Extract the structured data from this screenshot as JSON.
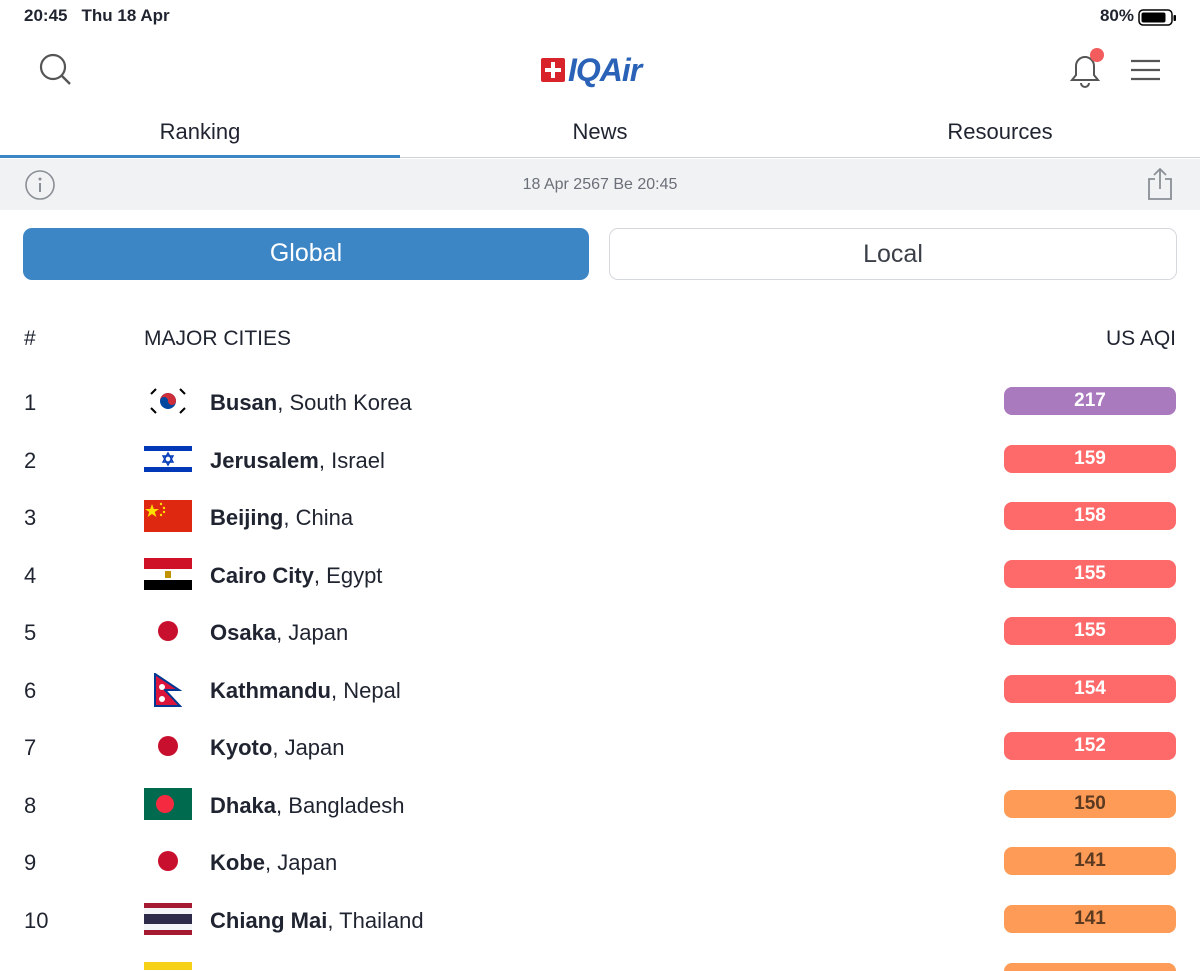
{
  "status_bar": {
    "time": "20:45",
    "date": "Thu 18 Apr",
    "battery": "80%"
  },
  "header": {
    "logo": "IQAir"
  },
  "tabs": [
    "Ranking",
    "News",
    "Resources"
  ],
  "info_bar": {
    "timestamp": "18 Apr 2567 Be 20:45"
  },
  "toggle": [
    "Global",
    "Local"
  ],
  "table": {
    "columns": [
      "#",
      "MAJOR CITIES",
      "US AQI"
    ],
    "rows": [
      {
        "rank": 1,
        "city": "Busan",
        "country": "South Korea",
        "aqi": 217,
        "color": "#a97abd"
      },
      {
        "rank": 2,
        "city": "Jerusalem",
        "country": "Israel",
        "aqi": 159,
        "color": "#fe6a69"
      },
      {
        "rank": 3,
        "city": "Beijing",
        "country": "China",
        "aqi": 158,
        "color": "#fe6a69"
      },
      {
        "rank": 4,
        "city": "Cairo City",
        "country": "Egypt",
        "aqi": 155,
        "color": "#fe6a69"
      },
      {
        "rank": 5,
        "city": "Osaka",
        "country": "Japan",
        "aqi": 155,
        "color": "#fe6a69"
      },
      {
        "rank": 6,
        "city": "Kathmandu",
        "country": "Nepal",
        "aqi": 154,
        "color": "#fe6a69"
      },
      {
        "rank": 7,
        "city": "Kyoto",
        "country": "Japan",
        "aqi": 152,
        "color": "#fe6a69"
      },
      {
        "rank": 8,
        "city": "Dhaka",
        "country": "Bangladesh",
        "aqi": 150,
        "color": "#fe9b57"
      },
      {
        "rank": 9,
        "city": "Kobe",
        "country": "Japan",
        "aqi": 141,
        "color": "#fe9b57"
      },
      {
        "rank": 10,
        "city": "Chiang Mai",
        "country": "Thailand",
        "aqi": 141,
        "color": "#fe9b57"
      }
    ]
  }
}
